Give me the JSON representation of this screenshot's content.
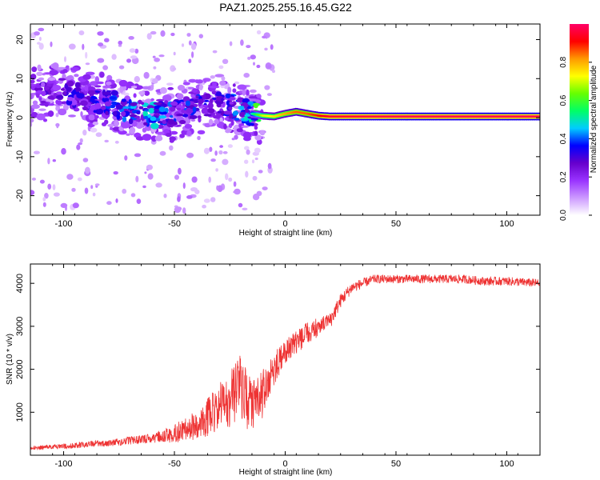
{
  "chart_data": [
    {
      "type": "heatmap",
      "title": "PAZ1.2025.255.16.45.G22",
      "xlabel": "Height of straight line (km)",
      "ylabel": "Frequency (Hz)",
      "xlim": [
        -115,
        115
      ],
      "ylim": [
        -25,
        24
      ],
      "xticks": [
        -100,
        -50,
        0,
        50,
        100
      ],
      "yticks": [
        -20,
        -10,
        0,
        10,
        20
      ],
      "colorbar": {
        "label": "Normalized spectral amplitude",
        "range": [
          0,
          1
        ],
        "ticks": [
          0.0,
          0.2,
          0.4,
          0.6,
          0.8
        ],
        "colors": [
          "#ffffff",
          "#cc99ff",
          "#9933ff",
          "#6600cc",
          "#0000ff",
          "#00ccff",
          "#00ff66",
          "#66ff00",
          "#ffff00",
          "#ff9900",
          "#ff0000",
          "#ff0066"
        ]
      },
      "ridge": {
        "x": [
          -110,
          -100,
          -90,
          -80,
          -70,
          -60,
          -50,
          -40,
          -30,
          -20,
          -15,
          -10,
          -5,
          0,
          5,
          10,
          15,
          20,
          50,
          100,
          115
        ],
        "y": [
          6,
          7,
          5,
          4,
          2,
          0.5,
          1,
          3,
          4,
          2,
          1,
          0.5,
          0.3,
          1,
          1.5,
          1,
          0.5,
          0.3,
          0.3,
          0.3,
          0.3
        ],
        "amplitude": [
          0.25,
          0.3,
          0.3,
          0.35,
          0.4,
          0.45,
          0.35,
          0.35,
          0.3,
          0.4,
          0.5,
          0.7,
          0.75,
          0.8,
          0.85,
          0.85,
          0.9,
          0.95,
          0.98,
          0.98,
          0.98
        ]
      }
    },
    {
      "type": "line",
      "xlabel": "Height of straight line (km)",
      "ylabel": "SNR (10 * v/v)",
      "xlim": [
        -115,
        115
      ],
      "ylim": [
        0,
        4450
      ],
      "xticks": [
        -100,
        -50,
        0,
        50,
        100
      ],
      "yticks": [
        1000,
        2000,
        3000,
        4000
      ],
      "color": "#ee3333",
      "trend": {
        "x": [
          -115,
          -100,
          -80,
          -60,
          -45,
          -35,
          -25,
          -20,
          -15,
          -10,
          -5,
          0,
          5,
          10,
          15,
          20,
          25,
          30,
          35,
          40,
          50,
          60,
          70,
          80,
          90,
          100,
          115
        ],
        "y": [
          150,
          180,
          250,
          350,
          450,
          700,
          1000,
          1300,
          800,
          1200,
          1800,
          2300,
          2500,
          2700,
          2900,
          3100,
          3600,
          3900,
          4000,
          4100,
          4100,
          4100,
          4100,
          4100,
          4050,
          4050,
          4000
        ]
      },
      "noise": {
        "x": [
          -115,
          -60,
          -40,
          -30,
          -20,
          -10,
          0,
          10,
          20,
          30,
          40,
          115
        ],
        "amplitude": [
          60,
          150,
          500,
          800,
          1100,
          800,
          400,
          400,
          200,
          130,
          100,
          100
        ]
      }
    }
  ]
}
